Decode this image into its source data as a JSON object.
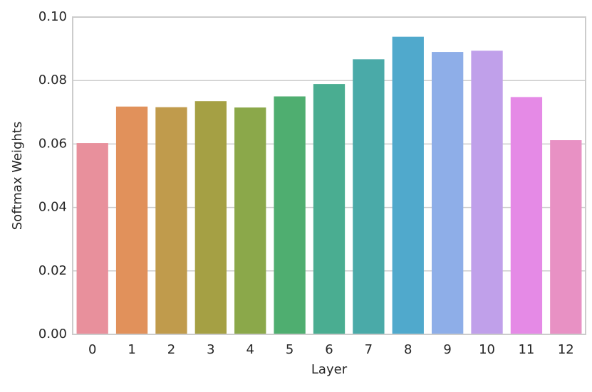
{
  "chart_data": {
    "type": "bar",
    "x_label": "Layer",
    "y_label": "Softmax Weights",
    "categories": [
      "0",
      "1",
      "2",
      "3",
      "4",
      "5",
      "6",
      "7",
      "8",
      "9",
      "10",
      "11",
      "12"
    ],
    "values": [
      0.0603,
      0.0718,
      0.0716,
      0.0735,
      0.0715,
      0.075,
      0.0789,
      0.0867,
      0.0938,
      0.089,
      0.0894,
      0.0748,
      0.0612
    ],
    "colors": [
      "#e8909c",
      "#e1915b",
      "#c09b4c",
      "#a5a044",
      "#8ba84a",
      "#4fae70",
      "#4aad91",
      "#4aaaa8",
      "#50a9cc",
      "#8eaee8",
      "#c0a0ea",
      "#e58ae6",
      "#e891c4"
    ],
    "ylim": [
      0,
      0.1
    ],
    "yticks": [
      {
        "value": 0,
        "label": "0.00"
      },
      {
        "value": 0.02,
        "label": "0.02"
      },
      {
        "value": 0.04,
        "label": "0.04"
      },
      {
        "value": 0.06,
        "label": "0.06"
      },
      {
        "value": 0.08,
        "label": "0.08"
      },
      {
        "value": 0.1,
        "label": "0.10"
      }
    ],
    "grid": true
  }
}
